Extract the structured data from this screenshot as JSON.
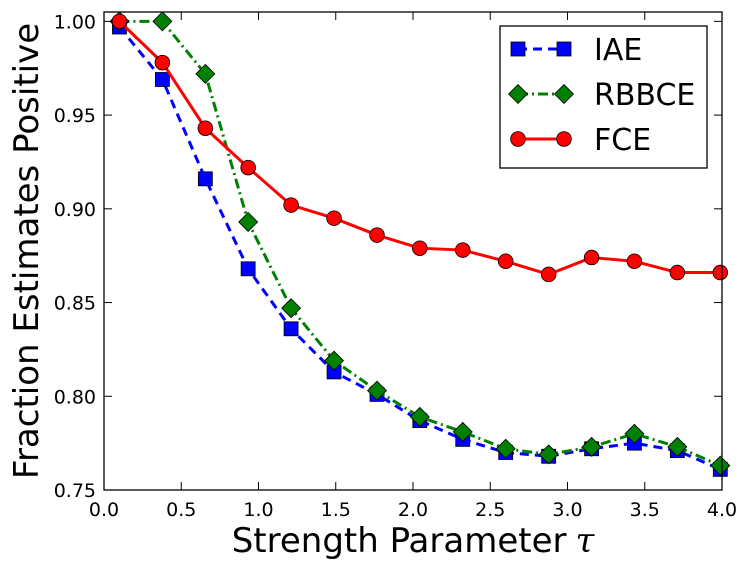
{
  "chart_data": {
    "type": "line",
    "title": "",
    "xlabel": "Strength Parameter",
    "xlabel_symbol": "τ",
    "ylabel": "Fraction Estimates Positive",
    "xlim": [
      0.0,
      4.0
    ],
    "ylim": [
      0.75,
      1.005
    ],
    "xticks": [
      "0.0",
      "0.5",
      "1.0",
      "1.5",
      "2.0",
      "2.5",
      "3.0",
      "3.5",
      "4.0"
    ],
    "yticks": [
      "0.75",
      "0.80",
      "0.85",
      "0.90",
      "0.95",
      "1.00"
    ],
    "grid": false,
    "legend_position": "top-right",
    "x": [
      0.1,
      0.378,
      0.656,
      0.933,
      1.211,
      1.489,
      1.767,
      2.044,
      2.322,
      2.6,
      2.878,
      3.156,
      3.433,
      3.711,
      3.989
    ],
    "series": [
      {
        "name": "IAE",
        "color": "#0000ff",
        "marker": "square",
        "linestyle": "dashed",
        "values": [
          0.997,
          0.969,
          0.916,
          0.868,
          0.836,
          0.813,
          0.801,
          0.787,
          0.777,
          0.77,
          0.768,
          0.772,
          0.775,
          0.771,
          0.761
        ]
      },
      {
        "name": "RBBCE",
        "color": "#008000",
        "marker": "diamond",
        "linestyle": "dashdot",
        "values": [
          1.0,
          1.0,
          0.972,
          0.893,
          0.847,
          0.819,
          0.803,
          0.789,
          0.781,
          0.772,
          0.769,
          0.773,
          0.78,
          0.773,
          0.763
        ]
      },
      {
        "name": "FCE",
        "color": "#ff0000",
        "marker": "circle",
        "linestyle": "solid",
        "values": [
          1.0,
          0.978,
          0.943,
          0.922,
          0.902,
          0.895,
          0.886,
          0.879,
          0.878,
          0.872,
          0.865,
          0.874,
          0.872,
          0.866,
          0.866
        ]
      }
    ]
  }
}
